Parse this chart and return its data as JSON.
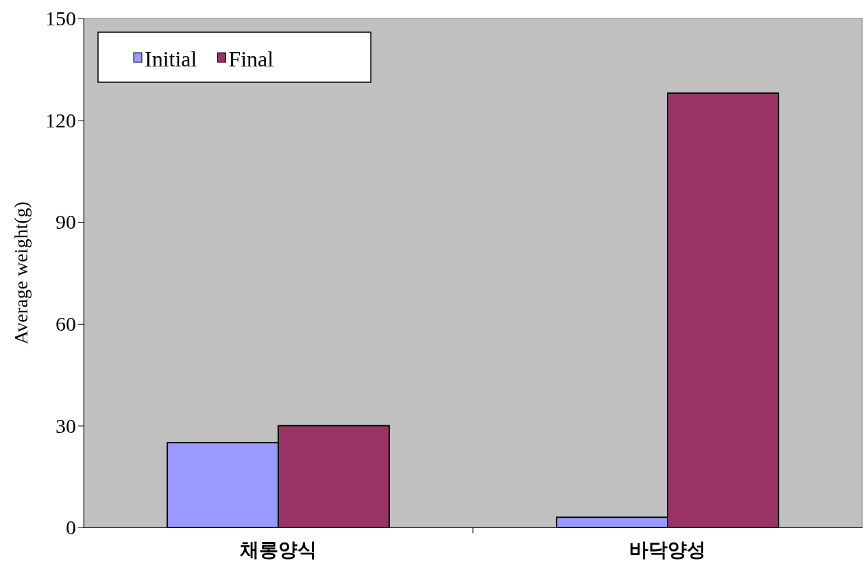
{
  "chart_data": {
    "type": "bar",
    "ylabel": "Average weight(g)",
    "categories": [
      "채롱양식",
      "바닥양성"
    ],
    "series": [
      {
        "name": "Initial",
        "color": "#9999ff",
        "values": [
          25,
          3
        ]
      },
      {
        "name": "Final",
        "color": "#993366",
        "values": [
          30,
          128
        ]
      }
    ],
    "ylim": [
      0,
      150
    ],
    "yticks": [
      0,
      30,
      60,
      90,
      120,
      150
    ],
    "grid": false,
    "legend": "top left"
  }
}
